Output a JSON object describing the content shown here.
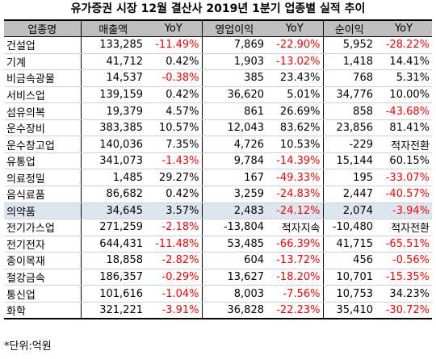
{
  "title": "유가증권 시장 12월 결산사 2019년 1분기 업종별 실적 추이",
  "headers": [
    "업종명",
    "매출액",
    "YoY",
    "영업이익",
    "YoY",
    "순이익",
    "YoY"
  ],
  "rows": [
    {
      "name": "건설업",
      "sales": "133,285",
      "sales_yoy": "-11.49%",
      "op": "7,869",
      "op_yoy": "-22.90%",
      "net": "5,952",
      "net_yoy": "-28.22%"
    },
    {
      "name": "기계",
      "sales": "41,712",
      "sales_yoy": "0.42%",
      "op": "1,903",
      "op_yoy": "-13.02%",
      "net": "1,418",
      "net_yoy": "14.41%"
    },
    {
      "name": "비금속광물",
      "sales": "14,537",
      "sales_yoy": "-0.38%",
      "op": "385",
      "op_yoy": "23.43%",
      "net": "768",
      "net_yoy": "5.31%"
    },
    {
      "name": "서비스업",
      "sales": "139,159",
      "sales_yoy": "0.42%",
      "op": "36,620",
      "op_yoy": "5.01%",
      "net": "34,776",
      "net_yoy": "10.00%"
    },
    {
      "name": "섬유의복",
      "sales": "19,379",
      "sales_yoy": "4.57%",
      "op": "861",
      "op_yoy": "26.69%",
      "net": "858",
      "net_yoy": "-43.68%"
    },
    {
      "name": "운수장비",
      "sales": "383,385",
      "sales_yoy": "10.57%",
      "op": "12,043",
      "op_yoy": "83.62%",
      "net": "23,856",
      "net_yoy": "81.41%"
    },
    {
      "name": "운수창고업",
      "sales": "140,036",
      "sales_yoy": "7.35%",
      "op": "4,726",
      "op_yoy": "10.53%",
      "net": "-229",
      "net_yoy": "적자전환"
    },
    {
      "name": "유통업",
      "sales": "341,073",
      "sales_yoy": "-1.43%",
      "op": "9,784",
      "op_yoy": "-14.39%",
      "net": "15,144",
      "net_yoy": "60.15%"
    },
    {
      "name": "의료정밀",
      "sales": "1,485",
      "sales_yoy": "29.27%",
      "op": "167",
      "op_yoy": "-49.33%",
      "net": "195",
      "net_yoy": "-33.07%"
    },
    {
      "name": "음식료품",
      "sales": "86,682",
      "sales_yoy": "0.42%",
      "op": "3,259",
      "op_yoy": "-24.83%",
      "net": "2,447",
      "net_yoy": "-40.57%"
    },
    {
      "name": "의약품",
      "sales": "34,645",
      "sales_yoy": "3.57%",
      "op": "2,483",
      "op_yoy": "-24.12%",
      "net": "2,074",
      "net_yoy": "-3.94%",
      "highlight": true
    },
    {
      "name": "전기가스업",
      "sales": "271,259",
      "sales_yoy": "-2.18%",
      "op": "-13,804",
      "op_yoy": "적자지속",
      "net": "-10,480",
      "net_yoy": "적자전환"
    },
    {
      "name": "전기전자",
      "sales": "644,431",
      "sales_yoy": "-11.48%",
      "op": "53,485",
      "op_yoy": "-66.39%",
      "net": "41,715",
      "net_yoy": "-65.51%"
    },
    {
      "name": "종이목재",
      "sales": "18,858",
      "sales_yoy": "-2.82%",
      "op": "604",
      "op_yoy": "-13.72%",
      "net": "456",
      "net_yoy": "-0.56%"
    },
    {
      "name": "철강금속",
      "sales": "186,357",
      "sales_yoy": "-0.29%",
      "op": "13,627",
      "op_yoy": "-18.20%",
      "net": "10,701",
      "net_yoy": "-15.35%"
    },
    {
      "name": "통신업",
      "sales": "101,616",
      "sales_yoy": "-1.04%",
      "op": "8,003",
      "op_yoy": "-7.56%",
      "net": "10,753",
      "net_yoy": "34.23%"
    },
    {
      "name": "화학",
      "sales": "321,221",
      "sales_yoy": "-3.91%",
      "op": "36,828",
      "op_yoy": "-22.23%",
      "net": "35,410",
      "net_yoy": "-30.72%"
    }
  ],
  "note": "*단위:억원",
  "colors": {
    "negative": "#ff0000",
    "header_bg": "#bfbfbf",
    "highlight_bg": "#dce6f1"
  }
}
